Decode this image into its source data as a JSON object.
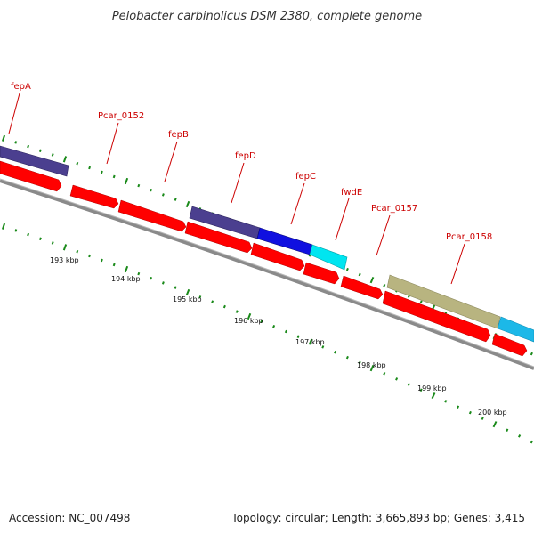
{
  "title": "Pelobacter carbinolicus DSM 2380, complete genome",
  "footer": {
    "accession": "Accession: NC_007498",
    "summary": "Topology: circular; Length: 3,665,893 bp; Genes: 3,415"
  },
  "scale_labels": [
    "193 kbp",
    "194 kbp",
    "195 kbp",
    "196 kbp",
    "197 kbp",
    "198 kbp",
    "199 kbp",
    "200 kbp"
  ],
  "gene_labels": [
    "fepA",
    "Pcar_0152",
    "fepB",
    "fepD",
    "fepC",
    "fwdE",
    "Pcar_0157",
    "Pcar_0158"
  ],
  "colors": {
    "forward_strand": "#ff0000",
    "fepA_fepD": "#4b3f8f",
    "fepC": "#1010e0",
    "fwdE": "#00e5f0",
    "Pcar_0158": "#b8b480",
    "cyan_end": "#1cb8e8",
    "tick": "#1a8a1a",
    "backbone": "#8a8a8a",
    "label": "#cc0000"
  }
}
